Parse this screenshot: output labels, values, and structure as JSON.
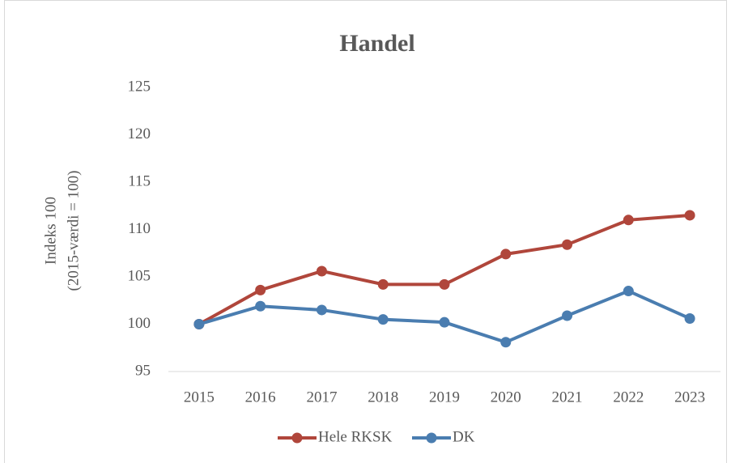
{
  "chart_data": {
    "type": "line",
    "title": "Handel",
    "ylabel": [
      "Indeks 100",
      "(2015-værdi = 100)"
    ],
    "categories": [
      "2015",
      "2016",
      "2017",
      "2018",
      "2019",
      "2020",
      "2021",
      "2022",
      "2023"
    ],
    "series": [
      {
        "name": "Hele RKSK",
        "color": "#b0463b",
        "values": [
          100,
          103.6,
          105.6,
          104.2,
          104.2,
          107.4,
          108.4,
          111,
          111.5
        ]
      },
      {
        "name": "DK",
        "color": "#4a7db0",
        "values": [
          100,
          101.9,
          101.5,
          100.5,
          100.2,
          98.1,
          100.9,
          103.5,
          100.6
        ]
      }
    ],
    "ylim": [
      95,
      125
    ],
    "yticks": [
      95,
      100,
      105,
      110,
      115,
      120,
      125
    ],
    "grid": false,
    "legend": "bottom"
  }
}
